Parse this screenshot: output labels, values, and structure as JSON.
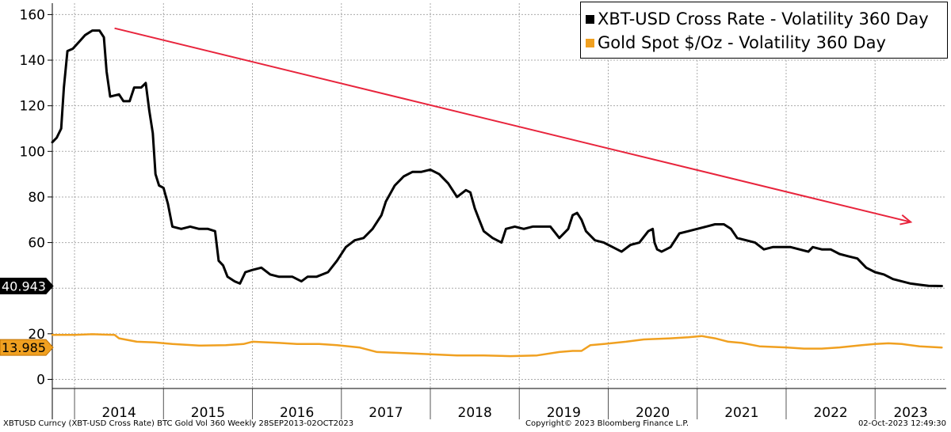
{
  "chart_data": {
    "type": "line",
    "ylim": [
      -4,
      165
    ],
    "xlim": [
      2013.75,
      2023.8
    ],
    "yticks": [
      0,
      20,
      40,
      60,
      80,
      100,
      120,
      140,
      160
    ],
    "ytick_labels": [
      "0",
      "20",
      "",
      "60",
      "80",
      "100",
      "120",
      "140",
      "160"
    ],
    "year_labels": [
      "2014",
      "2015",
      "2016",
      "2017",
      "2018",
      "2019",
      "2020",
      "2021",
      "2022",
      "2023"
    ],
    "grid": true,
    "legend_position": "top-right",
    "series": [
      {
        "name": "XBT-USD Cross Rate - Volatility 360 Day",
        "color": "#000000",
        "last_value_label": "40.943",
        "points": [
          [
            2013.75,
            104
          ],
          [
            2013.8,
            106
          ],
          [
            2013.85,
            110
          ],
          [
            2013.88,
            128
          ],
          [
            2013.92,
            144
          ],
          [
            2013.98,
            145
          ],
          [
            2014.05,
            148
          ],
          [
            2014.12,
            151
          ],
          [
            2014.2,
            153
          ],
          [
            2014.28,
            153
          ],
          [
            2014.33,
            150
          ],
          [
            2014.36,
            135
          ],
          [
            2014.4,
            124
          ],
          [
            2014.5,
            125
          ],
          [
            2014.55,
            122
          ],
          [
            2014.62,
            122
          ],
          [
            2014.67,
            128
          ],
          [
            2014.75,
            128
          ],
          [
            2014.8,
            130
          ],
          [
            2014.84,
            118
          ],
          [
            2014.88,
            108
          ],
          [
            2014.91,
            90
          ],
          [
            2014.95,
            85
          ],
          [
            2015.0,
            84
          ],
          [
            2015.05,
            77
          ],
          [
            2015.1,
            67
          ],
          [
            2015.2,
            66
          ],
          [
            2015.3,
            67
          ],
          [
            2015.4,
            66
          ],
          [
            2015.5,
            66
          ],
          [
            2015.58,
            65
          ],
          [
            2015.62,
            52
          ],
          [
            2015.67,
            50
          ],
          [
            2015.72,
            45
          ],
          [
            2015.8,
            43
          ],
          [
            2015.86,
            42
          ],
          [
            2015.92,
            47
          ],
          [
            2016.0,
            48
          ],
          [
            2016.1,
            49
          ],
          [
            2016.2,
            46
          ],
          [
            2016.3,
            45
          ],
          [
            2016.45,
            45
          ],
          [
            2016.55,
            43
          ],
          [
            2016.62,
            45
          ],
          [
            2016.72,
            45
          ],
          [
            2016.85,
            47
          ],
          [
            2016.95,
            52
          ],
          [
            2017.05,
            58
          ],
          [
            2017.15,
            61
          ],
          [
            2017.25,
            62
          ],
          [
            2017.35,
            66
          ],
          [
            2017.45,
            72
          ],
          [
            2017.5,
            78
          ],
          [
            2017.6,
            85
          ],
          [
            2017.7,
            89
          ],
          [
            2017.8,
            91
          ],
          [
            2017.9,
            91
          ],
          [
            2018.0,
            92
          ],
          [
            2018.1,
            90
          ],
          [
            2018.2,
            86
          ],
          [
            2018.3,
            80
          ],
          [
            2018.4,
            83
          ],
          [
            2018.45,
            82
          ],
          [
            2018.5,
            75
          ],
          [
            2018.55,
            70
          ],
          [
            2018.6,
            65
          ],
          [
            2018.7,
            62
          ],
          [
            2018.8,
            60
          ],
          [
            2018.85,
            66
          ],
          [
            2018.95,
            67
          ],
          [
            2019.05,
            66
          ],
          [
            2019.15,
            67
          ],
          [
            2019.25,
            67
          ],
          [
            2019.35,
            67
          ],
          [
            2019.45,
            62
          ],
          [
            2019.55,
            66
          ],
          [
            2019.6,
            72
          ],
          [
            2019.65,
            73
          ],
          [
            2019.7,
            70
          ],
          [
            2019.75,
            65
          ],
          [
            2019.85,
            61
          ],
          [
            2019.95,
            60
          ],
          [
            2020.05,
            58
          ],
          [
            2020.15,
            56
          ],
          [
            2020.25,
            59
          ],
          [
            2020.35,
            60
          ],
          [
            2020.45,
            65
          ],
          [
            2020.5,
            66
          ],
          [
            2020.52,
            60
          ],
          [
            2020.55,
            57
          ],
          [
            2020.6,
            56
          ],
          [
            2020.7,
            58
          ],
          [
            2020.8,
            64
          ],
          [
            2020.9,
            65
          ],
          [
            2021.0,
            66
          ],
          [
            2021.1,
            67
          ],
          [
            2021.2,
            68
          ],
          [
            2021.3,
            68
          ],
          [
            2021.38,
            66
          ],
          [
            2021.45,
            62
          ],
          [
            2021.55,
            61
          ],
          [
            2021.65,
            60
          ],
          [
            2021.75,
            57
          ],
          [
            2021.85,
            58
          ],
          [
            2021.95,
            58
          ],
          [
            2022.05,
            58
          ],
          [
            2022.15,
            57
          ],
          [
            2022.25,
            56
          ],
          [
            2022.3,
            58
          ],
          [
            2022.4,
            57
          ],
          [
            2022.5,
            57
          ],
          [
            2022.6,
            55
          ],
          [
            2022.7,
            54
          ],
          [
            2022.8,
            53
          ],
          [
            2022.9,
            49
          ],
          [
            2023.0,
            47
          ],
          [
            2023.1,
            46
          ],
          [
            2023.2,
            44
          ],
          [
            2023.3,
            43
          ],
          [
            2023.4,
            42
          ],
          [
            2023.5,
            41.5
          ],
          [
            2023.6,
            41
          ],
          [
            2023.75,
            40.943
          ]
        ]
      },
      {
        "name": "Gold Spot $/Oz - Volatility 360 Day",
        "color": "#f0a020",
        "last_value_label": "13.985",
        "points": [
          [
            2013.75,
            19.5
          ],
          [
            2014.0,
            19.5
          ],
          [
            2014.2,
            19.8
          ],
          [
            2014.45,
            19.5
          ],
          [
            2014.5,
            18
          ],
          [
            2014.7,
            16.5
          ],
          [
            2014.9,
            16.2
          ],
          [
            2015.1,
            15.5
          ],
          [
            2015.4,
            14.8
          ],
          [
            2015.7,
            15
          ],
          [
            2015.9,
            15.5
          ],
          [
            2016.0,
            16.5
          ],
          [
            2016.3,
            16
          ],
          [
            2016.5,
            15.5
          ],
          [
            2016.75,
            15.5
          ],
          [
            2016.95,
            15
          ],
          [
            2017.2,
            14
          ],
          [
            2017.4,
            12
          ],
          [
            2017.7,
            11.5
          ],
          [
            2018.0,
            11
          ],
          [
            2018.3,
            10.5
          ],
          [
            2018.6,
            10.5
          ],
          [
            2018.9,
            10.2
          ],
          [
            2019.2,
            10.5
          ],
          [
            2019.45,
            12
          ],
          [
            2019.6,
            12.5
          ],
          [
            2019.7,
            12.5
          ],
          [
            2019.8,
            15
          ],
          [
            2019.95,
            15.5
          ],
          [
            2020.2,
            16.5
          ],
          [
            2020.4,
            17.5
          ],
          [
            2020.7,
            18
          ],
          [
            2020.9,
            18.5
          ],
          [
            2021.05,
            19
          ],
          [
            2021.2,
            18
          ],
          [
            2021.35,
            16.5
          ],
          [
            2021.5,
            16
          ],
          [
            2021.7,
            14.5
          ],
          [
            2022.0,
            14
          ],
          [
            2022.2,
            13.5
          ],
          [
            2022.4,
            13.5
          ],
          [
            2022.6,
            14
          ],
          [
            2022.85,
            15
          ],
          [
            2023.0,
            15.5
          ],
          [
            2023.15,
            15.8
          ],
          [
            2023.3,
            15.5
          ],
          [
            2023.5,
            14.5
          ],
          [
            2023.75,
            13.985
          ]
        ]
      }
    ],
    "annotations": [
      {
        "type": "arrow",
        "color": "#e8243c",
        "from": [
          2014.45,
          154
        ],
        "to": [
          2023.4,
          69
        ]
      }
    ]
  },
  "footer": {
    "left": "XBTUSD Curncy (XBT-USD Cross Rate) BTC Gold Vol 360  Weekly 28SEP2013-02OCT2023",
    "center": "Copyright© 2023 Bloomberg Finance L.P.",
    "right": "02-Oct-2023 12:49:30"
  }
}
